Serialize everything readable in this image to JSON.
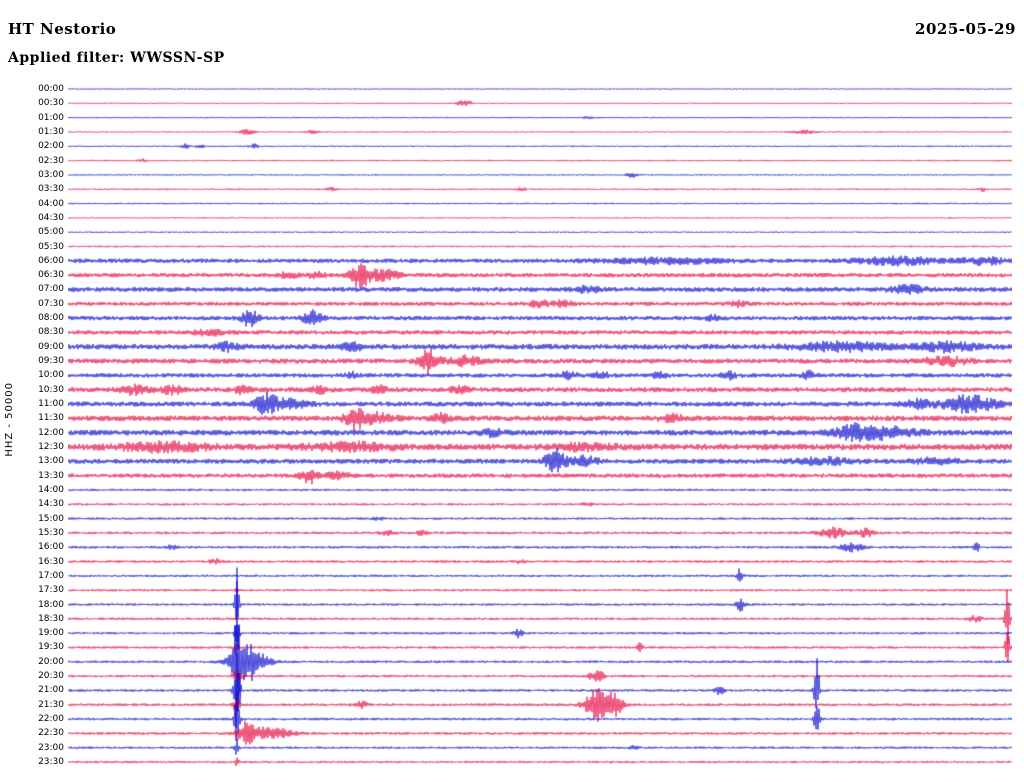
{
  "header": {
    "station": "HT Nestorio",
    "date": "2025-05-29",
    "filter_label": "Applied filter: WWSSN-SP"
  },
  "axis": {
    "channel_scale": "HHZ - 50000"
  },
  "chart_data": {
    "type": "line",
    "subtype": "helicorder-daily-plot",
    "title": "HT Nestorio 2025-05-29",
    "station": "HT Nestorio",
    "channel": "HHZ",
    "scale": 50000,
    "date": "2025-05-29",
    "filter": "WWSSN-SP",
    "minutes_per_row": 30,
    "rows_per_day": 48,
    "palette": {
      "blue": "#0000cc",
      "red": "#e4003c"
    },
    "rows": [
      {
        "t": "00:00",
        "color": "blue",
        "n": 0.7,
        "e": []
      },
      {
        "t": "00:30",
        "color": "red",
        "n": 0.7,
        "e": [
          [
            0.42,
            2.5,
            6
          ]
        ]
      },
      {
        "t": "01:00",
        "color": "blue",
        "n": 0.7,
        "e": [
          [
            0.55,
            1.2,
            4
          ]
        ]
      },
      {
        "t": "01:30",
        "color": "red",
        "n": 0.8,
        "e": [
          [
            0.19,
            2.2,
            5
          ],
          [
            0.26,
            1.6,
            4
          ],
          [
            0.78,
            1.6,
            8
          ]
        ]
      },
      {
        "t": "02:00",
        "color": "blue",
        "n": 0.8,
        "e": [
          [
            0.125,
            2.2,
            3
          ],
          [
            0.14,
            1.8,
            3
          ],
          [
            0.197,
            2.4,
            3
          ]
        ]
      },
      {
        "t": "02:30",
        "color": "red",
        "n": 0.8,
        "e": [
          [
            0.08,
            1.5,
            3
          ]
        ]
      },
      {
        "t": "03:00",
        "color": "blue",
        "n": 0.8,
        "e": [
          [
            0.597,
            2.2,
            4
          ]
        ]
      },
      {
        "t": "03:30",
        "color": "red",
        "n": 0.9,
        "e": [
          [
            0.28,
            1.6,
            4
          ],
          [
            0.48,
            1.6,
            4
          ],
          [
            0.968,
            2.2,
            3
          ]
        ]
      },
      {
        "t": "04:00",
        "color": "blue",
        "n": 0.8,
        "e": []
      },
      {
        "t": "04:30",
        "color": "red",
        "n": 0.8,
        "e": []
      },
      {
        "t": "05:00",
        "color": "blue",
        "n": 0.8,
        "e": []
      },
      {
        "t": "05:30",
        "color": "red",
        "n": 0.9,
        "e": []
      },
      {
        "t": "06:00",
        "color": "blue",
        "n": 2.2,
        "e": [
          [
            0.63,
            2.5,
            40
          ],
          [
            0.88,
            3.5,
            30
          ],
          [
            0.97,
            3,
            15
          ]
        ]
      },
      {
        "t": "06:30",
        "color": "red",
        "n": 2.2,
        "e": [
          [
            0.235,
            3,
            6
          ],
          [
            0.262,
            3,
            6
          ],
          [
            0.31,
            12,
            7
          ],
          [
            0.335,
            5,
            10
          ]
        ]
      },
      {
        "t": "07:00",
        "color": "blue",
        "n": 2.4,
        "e": [
          [
            0.55,
            2.5,
            10
          ],
          [
            0.89,
            3.5,
            12
          ]
        ]
      },
      {
        "t": "07:30",
        "color": "red",
        "n": 2.0,
        "e": [
          [
            0.5,
            3,
            8
          ],
          [
            0.525,
            3,
            6
          ],
          [
            0.71,
            2.5,
            6
          ]
        ]
      },
      {
        "t": "08:00",
        "color": "blue",
        "n": 2.2,
        "e": [
          [
            0.193,
            8,
            6
          ],
          [
            0.26,
            7,
            7
          ],
          [
            0.685,
            3,
            5
          ]
        ]
      },
      {
        "t": "08:30",
        "color": "red",
        "n": 2.2,
        "e": [
          [
            0.15,
            2.5,
            10
          ]
        ]
      },
      {
        "t": "09:00",
        "color": "blue",
        "n": 2.8,
        "e": [
          [
            0.17,
            3.5,
            8
          ],
          [
            0.3,
            3.5,
            8
          ],
          [
            0.82,
            4,
            30
          ],
          [
            0.93,
            4,
            20
          ]
        ]
      },
      {
        "t": "09:30",
        "color": "red",
        "n": 2.5,
        "e": [
          [
            0.383,
            12,
            7
          ],
          [
            0.42,
            5,
            10
          ],
          [
            0.93,
            4,
            15
          ]
        ]
      },
      {
        "t": "10:00",
        "color": "blue",
        "n": 2.2,
        "e": [
          [
            0.3,
            2.5,
            5
          ],
          [
            0.53,
            3,
            6
          ],
          [
            0.565,
            3.5,
            5
          ],
          [
            0.627,
            3,
            5
          ],
          [
            0.7,
            3,
            5
          ],
          [
            0.785,
            3.5,
            5
          ]
        ]
      },
      {
        "t": "10:30",
        "color": "red",
        "n": 2.5,
        "e": [
          [
            0.07,
            4,
            10
          ],
          [
            0.11,
            4,
            8
          ],
          [
            0.185,
            3.5,
            6
          ],
          [
            0.267,
            3.5,
            6
          ],
          [
            0.33,
            3,
            6
          ],
          [
            0.415,
            3,
            6
          ]
        ]
      },
      {
        "t": "11:00",
        "color": "blue",
        "n": 2.5,
        "e": [
          [
            0.209,
            10,
            8
          ],
          [
            0.235,
            4,
            12
          ],
          [
            0.9,
            4,
            10
          ],
          [
            0.955,
            8,
            18
          ]
        ]
      },
      {
        "t": "11:30",
        "color": "red",
        "n": 2.8,
        "e": [
          [
            0.304,
            10,
            7
          ],
          [
            0.33,
            5,
            10
          ],
          [
            0.395,
            4,
            6
          ],
          [
            0.64,
            3,
            8
          ]
        ]
      },
      {
        "t": "12:00",
        "color": "blue",
        "n": 2.8,
        "e": [
          [
            0.45,
            3,
            8
          ],
          [
            0.83,
            4,
            10
          ],
          [
            0.858,
            6,
            25
          ]
        ]
      },
      {
        "t": "12:30",
        "color": "red",
        "n": 3.2,
        "e": [
          [
            0.1,
            4,
            30
          ],
          [
            0.3,
            3.5,
            30
          ],
          [
            0.55,
            3,
            20
          ]
        ]
      },
      {
        "t": "13:00",
        "color": "blue",
        "n": 2.5,
        "e": [
          [
            0.516,
            12,
            7
          ],
          [
            0.545,
            5,
            10
          ],
          [
            0.8,
            3,
            20
          ],
          [
            0.92,
            3,
            15
          ]
        ]
      },
      {
        "t": "13:30",
        "color": "red",
        "n": 2.2,
        "e": [
          [
            0.256,
            7,
            6
          ],
          [
            0.285,
            3.5,
            8
          ]
        ]
      },
      {
        "t": "14:00",
        "color": "blue",
        "n": 1.2,
        "e": []
      },
      {
        "t": "14:30",
        "color": "red",
        "n": 1.2,
        "e": [
          [
            0.55,
            1.5,
            4
          ]
        ]
      },
      {
        "t": "15:00",
        "color": "blue",
        "n": 1.2,
        "e": [
          [
            0.33,
            1.5,
            4
          ]
        ]
      },
      {
        "t": "15:30",
        "color": "red",
        "n": 1.4,
        "e": [
          [
            0.34,
            2.5,
            5
          ],
          [
            0.375,
            2.5,
            4
          ],
          [
            0.81,
            5,
            10
          ],
          [
            0.845,
            4,
            6
          ]
        ]
      },
      {
        "t": "16:00",
        "color": "blue",
        "n": 1.3,
        "e": [
          [
            0.11,
            2,
            4
          ],
          [
            0.83,
            4,
            8
          ],
          [
            0.962,
            5,
            2
          ]
        ]
      },
      {
        "t": "16:30",
        "color": "red",
        "n": 1.3,
        "e": [
          [
            0.156,
            2.5,
            4
          ],
          [
            0.48,
            2,
            4
          ]
        ]
      },
      {
        "t": "17:00",
        "color": "blue",
        "n": 1.2,
        "e": [
          [
            0.712,
            8,
            2
          ]
        ]
      },
      {
        "t": "17:30",
        "color": "red",
        "n": 1.2,
        "e": [
          [
            0.179,
            3,
            1.5
          ]
        ]
      },
      {
        "t": "18:00",
        "color": "blue",
        "n": 1.2,
        "e": [
          [
            0.179,
            25,
            1.5
          ],
          [
            0.712,
            7,
            3
          ]
        ]
      },
      {
        "t": "18:30",
        "color": "red",
        "n": 1.3,
        "e": [
          [
            0.96,
            3,
            5
          ],
          [
            0.995,
            32,
            1.5
          ]
        ]
      },
      {
        "t": "19:00",
        "color": "blue",
        "n": 1.2,
        "e": [
          [
            0.179,
            20,
            1.5
          ],
          [
            0.478,
            5,
            3
          ]
        ]
      },
      {
        "t": "19:30",
        "color": "red",
        "n": 1.3,
        "e": [
          [
            0.179,
            8,
            1.5
          ],
          [
            0.605,
            4,
            2.5
          ],
          [
            0.995,
            22,
            1.5
          ]
        ]
      },
      {
        "t": "20:00",
        "color": "blue",
        "n": 1.3,
        "e": [
          [
            0.179,
            120,
            1.8
          ],
          [
            0.19,
            20,
            12
          ]
        ]
      },
      {
        "t": "20:30",
        "color": "red",
        "n": 1.3,
        "e": [
          [
            0.179,
            6,
            3
          ],
          [
            0.56,
            6,
            5
          ]
        ]
      },
      {
        "t": "21:00",
        "color": "blue",
        "n": 1.3,
        "e": [
          [
            0.179,
            50,
            2
          ],
          [
            0.69,
            4,
            3
          ],
          [
            0.793,
            40,
            1.8
          ]
        ]
      },
      {
        "t": "21:30",
        "color": "red",
        "n": 1.4,
        "e": [
          [
            0.179,
            8,
            2.5
          ],
          [
            0.31,
            3,
            5
          ],
          [
            0.56,
            16,
            8
          ],
          [
            0.578,
            12,
            6
          ]
        ]
      },
      {
        "t": "22:00",
        "color": "blue",
        "n": 1.3,
        "e": [
          [
            0.179,
            30,
            1.8
          ],
          [
            0.793,
            25,
            1.8
          ]
        ]
      },
      {
        "t": "22:30",
        "color": "red",
        "n": 1.4,
        "e": [
          [
            0.188,
            10,
            6
          ],
          [
            0.215,
            6,
            15
          ]
        ]
      },
      {
        "t": "23:00",
        "color": "blue",
        "n": 1.2,
        "e": [
          [
            0.179,
            8,
            1.5
          ],
          [
            0.6,
            2,
            3
          ]
        ]
      },
      {
        "t": "23:30",
        "color": "red",
        "n": 1.2,
        "e": [
          [
            0.179,
            4,
            1.5
          ]
        ]
      }
    ]
  }
}
